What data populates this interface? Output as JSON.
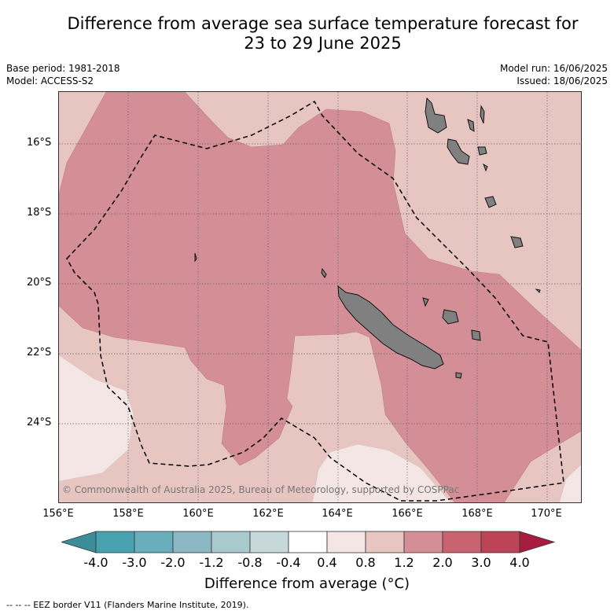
{
  "title_line1": "Difference from average sea surface temperature forecast for",
  "title_line2": "23 to 29 June 2025",
  "left_meta": {
    "base_period": "Base period: 1981-2018",
    "model": "Model: ACCESS-S2"
  },
  "right_meta": {
    "model_run": "Model run: 16/06/2025",
    "issued": "Issued: 18/06/2025"
  },
  "map": {
    "copyright": "© Commonwealth of Australia 2025, Bureau of Meteorology, supported by COSPPac",
    "lat_labels": [
      "16°S",
      "18°S",
      "20°S",
      "22°S",
      "24°S"
    ],
    "lon_labels": [
      "156°E",
      "158°E",
      "160°E",
      "162°E",
      "164°E",
      "166°E",
      "168°E",
      "170°E"
    ],
    "colors": {
      "anomaly_0_4_to_0_8": "#f4e6e5",
      "anomaly_0_8_to_1_2": "#e7c6c2",
      "anomaly_1_2_to_2_0": "#d48f96",
      "land": "#808080",
      "grid": "#666666",
      "eez_border": "#000000"
    }
  },
  "colorbar": {
    "ticks": [
      "-4.0",
      "-3.0",
      "-2.0",
      "-1.2",
      "-0.8",
      "-0.4",
      "0.4",
      "0.8",
      "1.2",
      "2.0",
      "3.0",
      "4.0"
    ],
    "colors": [
      "#3d8c99",
      "#48a2b0",
      "#6aadbb",
      "#8cb8c4",
      "#a9cacd",
      "#c6d8da",
      "#ffffff",
      "#f4e6e5",
      "#e7c6c2",
      "#d48f96",
      "#c9636f",
      "#bd4356",
      "#a81d3f"
    ],
    "label": "Difference from average (°C)"
  },
  "legend_note": "--  --  -- EEZ border V11 (Flanders Marine Institute, 2019)."
}
